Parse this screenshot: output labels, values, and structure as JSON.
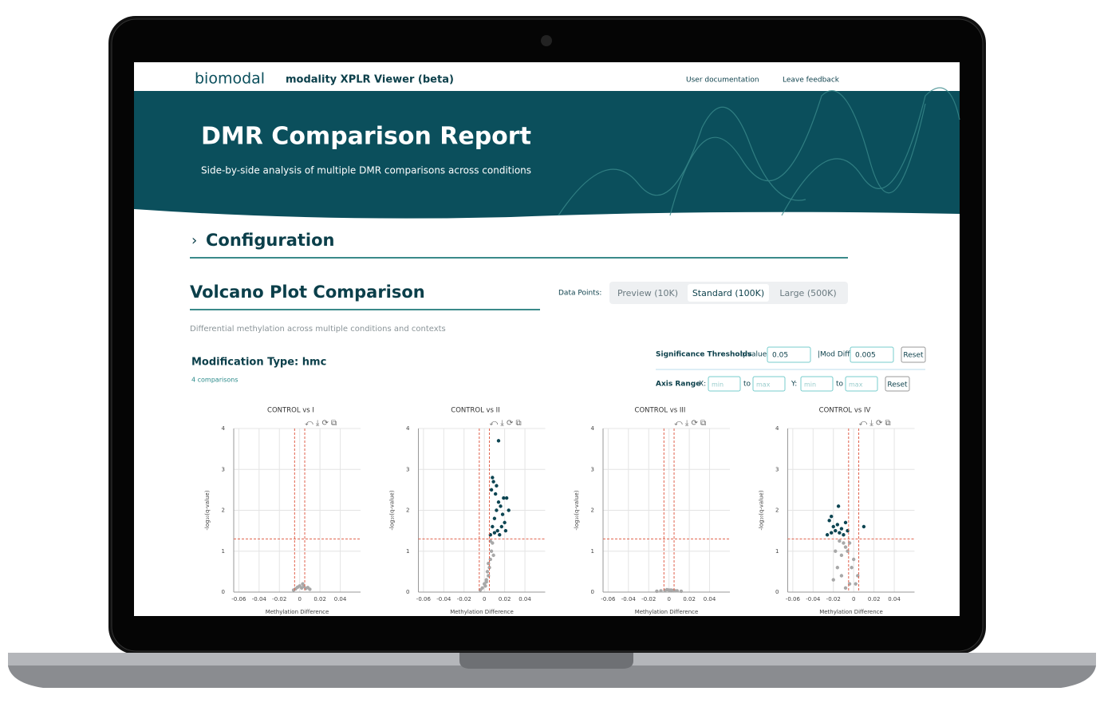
{
  "header": {
    "logo": "biomodal",
    "app_title": "modality XPLR Viewer (beta)",
    "links": [
      "User documentation",
      "Leave feedback"
    ]
  },
  "hero": {
    "title": "DMR Comparison Report",
    "subtitle": "Side-by-side analysis of multiple DMR comparisons across conditions"
  },
  "configuration": {
    "title": "Configuration"
  },
  "volcano": {
    "title": "Volcano Plot Comparison",
    "data_points_label": "Data Points:",
    "options": [
      "Preview (10K)",
      "Standard (100K)",
      "Large (500K)"
    ],
    "selected_option": 1,
    "description": "Differential methylation across multiple conditions and contexts",
    "modification_type": "Modification Type: hmc",
    "comparisons_count": "4 comparisons",
    "thresholds": {
      "label": "Significance Thresholds",
      "q_label": "q-value",
      "q_value": "0.05",
      "mod_label": "|Mod Diff|",
      "mod_value": "0.005",
      "reset": "Reset"
    },
    "axis_range": {
      "label": "Axis Range",
      "x_label": "X:",
      "y_label": "Y:",
      "to": "to",
      "min": "min",
      "max": "max",
      "reset": "Reset"
    }
  },
  "chart_data": [
    {
      "type": "scatter",
      "title": "CONTROL vs I",
      "x_label": "Methylation Difference",
      "y_label": "-log₁₀(q-value)",
      "xlim": [
        -0.065,
        0.06
      ],
      "ylim": [
        0,
        4
      ],
      "xticks": [
        -0.06,
        -0.04,
        -0.02,
        0,
        0.02,
        0.04
      ],
      "yticks": [
        0,
        1,
        2,
        3,
        4
      ],
      "grid": true,
      "threshold_y": 1.3,
      "threshold_x": [
        -0.005,
        0.005
      ],
      "series": [
        {
          "color": "#a8a8a8",
          "x": [
            -0.004,
            -0.002,
            0,
            0.002,
            0.004,
            0.006,
            0.008,
            -0.006,
            0.01,
            0.003
          ],
          "y": [
            0.08,
            0.12,
            0.15,
            0.1,
            0.14,
            0.09,
            0.11,
            0.05,
            0.07,
            0.2
          ]
        }
      ]
    },
    {
      "type": "scatter",
      "title": "CONTROL vs II",
      "x_label": "Methylation Difference",
      "y_label": "-log₁₀(q-value)",
      "xlim": [
        -0.065,
        0.06
      ],
      "ylim": [
        0,
        4
      ],
      "xticks": [
        -0.06,
        -0.04,
        -0.02,
        0,
        0.02,
        0.04
      ],
      "yticks": [
        0,
        1,
        2,
        3,
        4
      ],
      "grid": true,
      "threshold_y": 1.3,
      "threshold_x": [
        -0.005,
        0.005
      ],
      "series": [
        {
          "color": "#a8a8a8",
          "x": [
            -0.002,
            0,
            0.002,
            0.004,
            0.005,
            0.006,
            0.007,
            0.008,
            0.003,
            0.001,
            -0.004,
            0.009,
            0.006,
            0.004,
            0.002
          ],
          "y": [
            0.1,
            0.2,
            0.3,
            0.4,
            0.6,
            0.8,
            1.0,
            1.2,
            0.5,
            0.15,
            0.05,
            0.9,
            1.25,
            0.7,
            0.25
          ]
        },
        {
          "color": "#0d4552",
          "x": [
            0.006,
            0.008,
            0.01,
            0.012,
            0.014,
            0.016,
            0.018,
            0.02,
            0.022,
            0.024,
            0.007,
            0.009,
            0.011,
            0.013,
            0.015,
            0.017,
            0.019,
            0.021,
            0.012,
            0.01,
            0.008,
            0.014
          ],
          "y": [
            1.4,
            1.6,
            1.8,
            2.0,
            2.2,
            2.1,
            1.9,
            1.7,
            2.3,
            2.0,
            2.5,
            2.7,
            2.4,
            1.5,
            1.4,
            1.6,
            2.3,
            1.5,
            2.6,
            1.45,
            2.8,
            3.7
          ]
        }
      ]
    },
    {
      "type": "scatter",
      "title": "CONTROL vs III",
      "x_label": "Methylation Difference",
      "y_label": "-log₁₀(q-value)",
      "xlim": [
        -0.065,
        0.06
      ],
      "ylim": [
        0,
        4
      ],
      "xticks": [
        -0.06,
        -0.04,
        -0.02,
        0,
        0.02,
        0.04
      ],
      "yticks": [
        0,
        1,
        2,
        3,
        4
      ],
      "grid": true,
      "threshold_y": 1.3,
      "threshold_x": [
        -0.005,
        0.005
      ],
      "series": [
        {
          "color": "#a8a8a8",
          "x": [
            -0.012,
            -0.008,
            -0.004,
            0,
            0.004,
            0.008,
            0.012,
            -0.002,
            0.002,
            0.006
          ],
          "y": [
            0.02,
            0.03,
            0.04,
            0.05,
            0.04,
            0.03,
            0.02,
            0.06,
            0.05,
            0.03
          ]
        }
      ]
    },
    {
      "type": "scatter",
      "title": "CONTROL vs IV",
      "x_label": "Methylation Difference",
      "y_label": "-log₁₀(q-value)",
      "xlim": [
        -0.065,
        0.06
      ],
      "ylim": [
        0,
        4
      ],
      "xticks": [
        -0.06,
        -0.04,
        -0.02,
        0,
        0.02,
        0.04
      ],
      "yticks": [
        0,
        1,
        2,
        3,
        4
      ],
      "grid": true,
      "threshold_y": 1.3,
      "threshold_x": [
        -0.005,
        0.005
      ],
      "series": [
        {
          "color": "#a8a8a8",
          "x": [
            -0.02,
            -0.016,
            -0.012,
            -0.008,
            -0.004,
            0,
            0.004,
            -0.018,
            -0.014,
            -0.01,
            -0.006,
            -0.002,
            0.002,
            -0.012,
            -0.008,
            -0.004
          ],
          "y": [
            0.3,
            0.6,
            0.9,
            1.1,
            1.2,
            0.8,
            0.4,
            1.0,
            1.25,
            1.2,
            1.0,
            0.6,
            0.2,
            0.4,
            0.1,
            0.2
          ]
        },
        {
          "color": "#0d4552",
          "x": [
            -0.026,
            -0.022,
            -0.018,
            -0.014,
            -0.01,
            -0.006,
            -0.02,
            -0.016,
            -0.012,
            -0.008,
            -0.024,
            -0.022,
            0.01,
            -0.015
          ],
          "y": [
            1.4,
            1.45,
            1.5,
            1.45,
            1.4,
            1.5,
            1.6,
            1.65,
            1.55,
            1.7,
            1.75,
            1.85,
            1.6,
            2.1
          ]
        }
      ]
    }
  ]
}
